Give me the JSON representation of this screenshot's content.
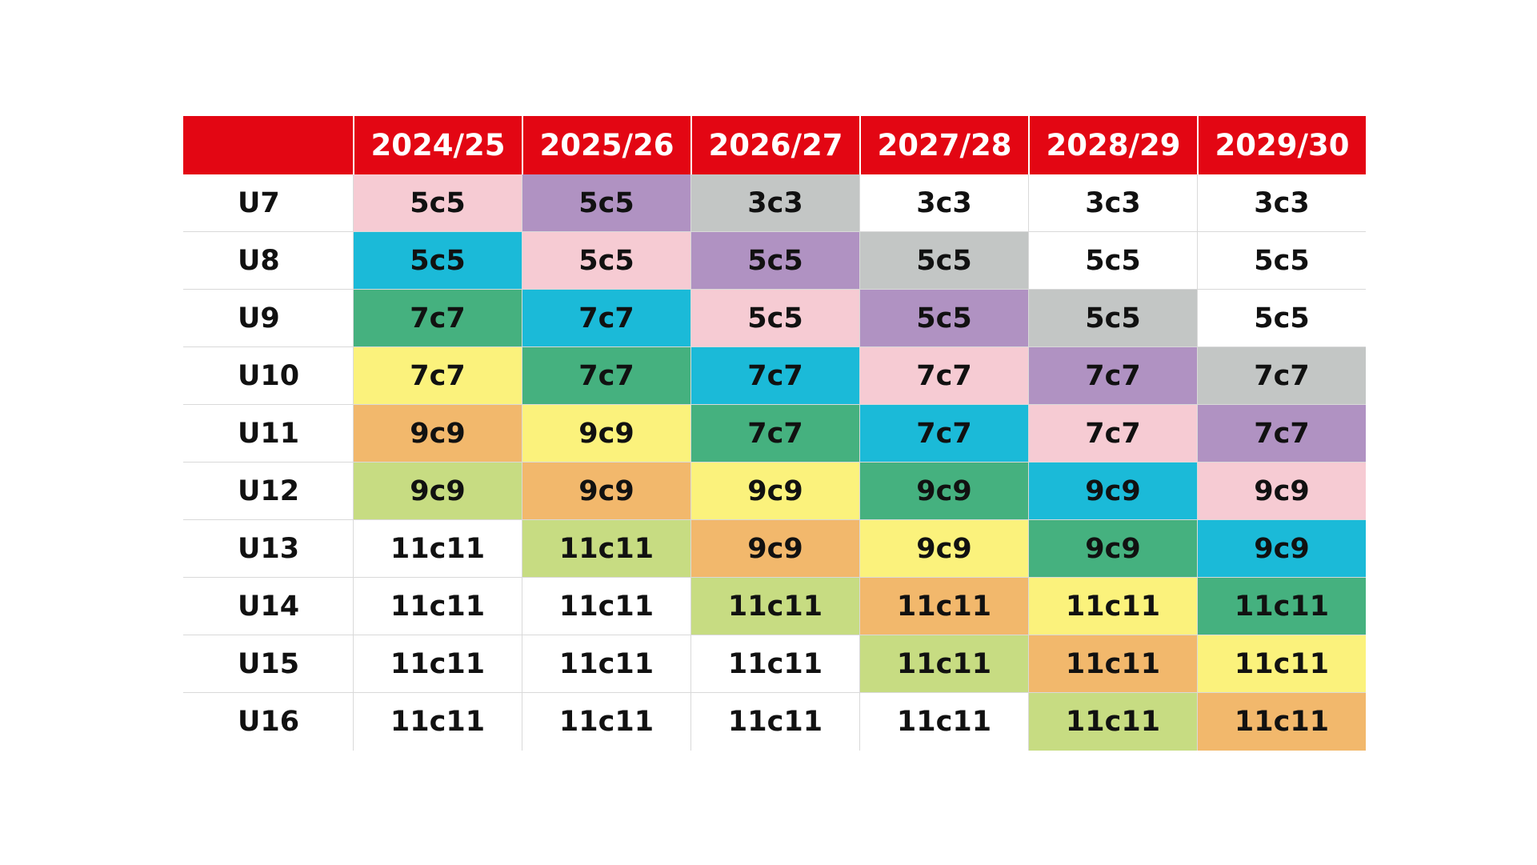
{
  "table": {
    "corner_label": "",
    "columns": [
      "2024/25",
      "2025/26",
      "2026/27",
      "2027/28",
      "2028/29",
      "2029/30"
    ],
    "rows": [
      {
        "label": "U7",
        "values": [
          "5c5",
          "5c5",
          "3c3",
          "3c3",
          "3c3",
          "3c3"
        ],
        "colors": [
          "#f6cbd3",
          "#b092c2",
          "#c3c6c5",
          "#ffffff",
          "#ffffff",
          "#ffffff"
        ]
      },
      {
        "label": "U8",
        "values": [
          "5c5",
          "5c5",
          "5c5",
          "5c5",
          "5c5",
          "5c5"
        ],
        "colors": [
          "#1bbad8",
          "#f6cbd3",
          "#b092c2",
          "#c3c6c5",
          "#ffffff",
          "#ffffff"
        ]
      },
      {
        "label": "U9",
        "values": [
          "7c7",
          "7c7",
          "5c5",
          "5c5",
          "5c5",
          "5c5"
        ],
        "colors": [
          "#45b17f",
          "#1bbad8",
          "#f6cbd3",
          "#b092c2",
          "#c3c6c5",
          "#ffffff"
        ]
      },
      {
        "label": "U10",
        "values": [
          "7c7",
          "7c7",
          "7c7",
          "7c7",
          "7c7",
          "7c7"
        ],
        "colors": [
          "#fbf27c",
          "#45b17f",
          "#1bbad8",
          "#f6cbd3",
          "#b092c2",
          "#c3c6c5"
        ]
      },
      {
        "label": "U11",
        "values": [
          "9c9",
          "9c9",
          "7c7",
          "7c7",
          "7c7",
          "7c7"
        ],
        "colors": [
          "#f2b86c",
          "#fbf27c",
          "#45b17f",
          "#1bbad8",
          "#f6cbd3",
          "#b092c2"
        ]
      },
      {
        "label": "U12",
        "values": [
          "9c9",
          "9c9",
          "9c9",
          "9c9",
          "9c9",
          "9c9"
        ],
        "colors": [
          "#c7dc82",
          "#f2b86c",
          "#fbf27c",
          "#45b17f",
          "#1bbad8",
          "#f6cbd3"
        ]
      },
      {
        "label": "U13",
        "values": [
          "11c11",
          "11c11",
          "9c9",
          "9c9",
          "9c9",
          "9c9"
        ],
        "colors": [
          "#ffffff",
          "#c7dc82",
          "#f2b86c",
          "#fbf27c",
          "#45b17f",
          "#1bbad8"
        ]
      },
      {
        "label": "U14",
        "values": [
          "11c11",
          "11c11",
          "11c11",
          "11c11",
          "11c11",
          "11c11"
        ],
        "colors": [
          "#ffffff",
          "#ffffff",
          "#c7dc82",
          "#f2b86c",
          "#fbf27c",
          "#45b17f"
        ]
      },
      {
        "label": "U15",
        "values": [
          "11c11",
          "11c11",
          "11c11",
          "11c11",
          "11c11",
          "11c11"
        ],
        "colors": [
          "#ffffff",
          "#ffffff",
          "#ffffff",
          "#c7dc82",
          "#f2b86c",
          "#fbf27c"
        ]
      },
      {
        "label": "U16",
        "values": [
          "11c11",
          "11c11",
          "11c11",
          "11c11",
          "11c11",
          "11c11"
        ],
        "colors": [
          "#ffffff",
          "#ffffff",
          "#ffffff",
          "#ffffff",
          "#c7dc82",
          "#f2b86c"
        ]
      }
    ]
  },
  "theme": {
    "header_bg": "#e30613",
    "header_text": "#ffffff",
    "grid_line": "#d9d9d9"
  }
}
